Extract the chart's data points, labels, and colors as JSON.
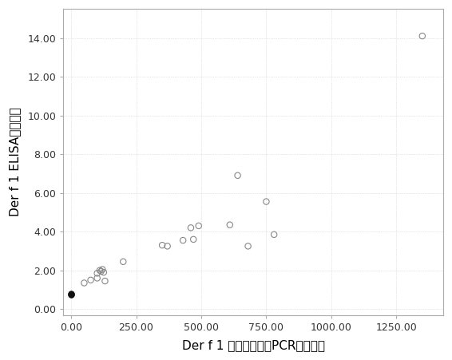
{
  "x": [
    0,
    0,
    50,
    75,
    100,
    100,
    110,
    115,
    120,
    125,
    130,
    200,
    350,
    370,
    430,
    460,
    470,
    490,
    610,
    640,
    680,
    750,
    780,
    1350
  ],
  "y": [
    0.75,
    0.8,
    1.35,
    1.5,
    1.6,
    1.85,
    2.0,
    1.95,
    2.05,
    1.9,
    1.45,
    2.45,
    3.3,
    3.25,
    3.55,
    4.2,
    3.6,
    4.3,
    4.35,
    6.9,
    3.25,
    5.55,
    3.85,
    14.1
  ],
  "filled_indices": [
    0,
    1
  ],
  "xlabel": "Der f 1 实时荧光定量PCR检测结果",
  "ylabel": "Der f 1 ELISA检测结果",
  "xlim": [
    -30,
    1430
  ],
  "ylim": [
    -0.3,
    15.5
  ],
  "xticks": [
    0,
    250,
    500,
    750,
    1000,
    1250
  ],
  "yticks": [
    0,
    2,
    4,
    6,
    8,
    10,
    12,
    14
  ],
  "xtick_labels": [
    "0.00",
    "250.00",
    "500.00",
    "750.00",
    "1000.00",
    "1250.00"
  ],
  "ytick_labels": [
    "0.00",
    "2.00",
    "4.00",
    "6.00",
    "8.00",
    "10.00",
    "12.00",
    "14.00"
  ],
  "open_marker_color": "#999999",
  "open_marker_edge": "#888888",
  "filled_marker_color": "#111111",
  "background_color": "#ffffff",
  "plot_bg_color": "#ffffff",
  "grid_color": "#cccccc",
  "tick_fontsize": 9,
  "label_fontsize": 11,
  "marker_size": 28
}
